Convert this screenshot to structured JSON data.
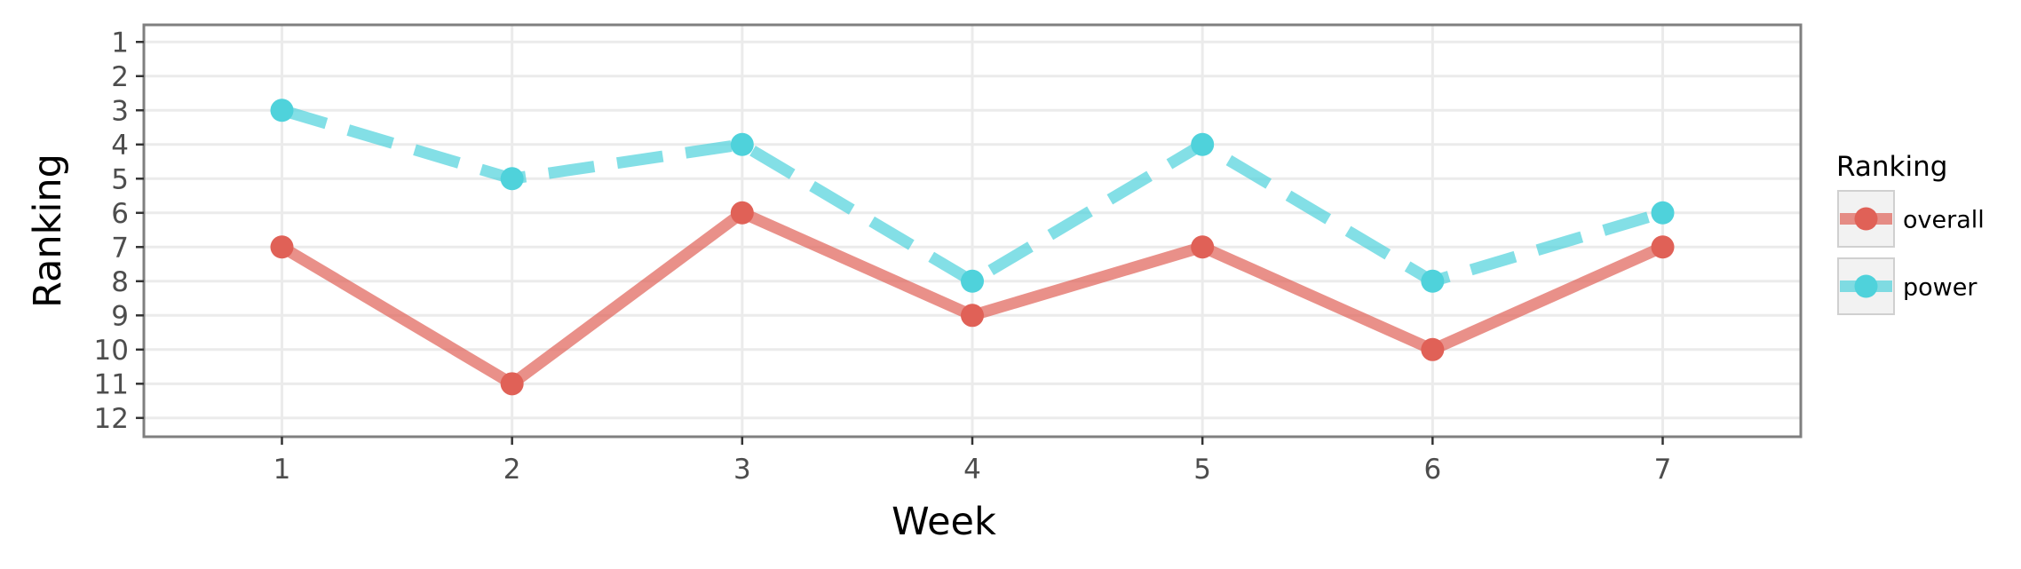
{
  "chart_data": {
    "type": "line",
    "title": "",
    "xlabel": "Week",
    "ylabel": "Ranking",
    "x": [
      1,
      2,
      3,
      4,
      5,
      6,
      7
    ],
    "xlim": [
      0.4,
      7.6
    ],
    "ylim": [
      12.55,
      0.5
    ],
    "y_reversed": true,
    "x_ticks": [
      "1",
      "2",
      "3",
      "4",
      "5",
      "6",
      "7"
    ],
    "y_ticks": [
      "1",
      "2",
      "3",
      "4",
      "5",
      "6",
      "7",
      "8",
      "9",
      "10",
      "11",
      "12"
    ],
    "grid": true,
    "legend": {
      "title": "Ranking",
      "position": "right"
    },
    "series": [
      {
        "name": "overall",
        "values": [
          7,
          11,
          6,
          9,
          7,
          10,
          7
        ],
        "color": "#e06157",
        "linestyle": "solid"
      },
      {
        "name": "power",
        "values": [
          3,
          5,
          4,
          8,
          4,
          8,
          6
        ],
        "color": "#4fd2db",
        "linestyle": "dashed"
      }
    ]
  }
}
